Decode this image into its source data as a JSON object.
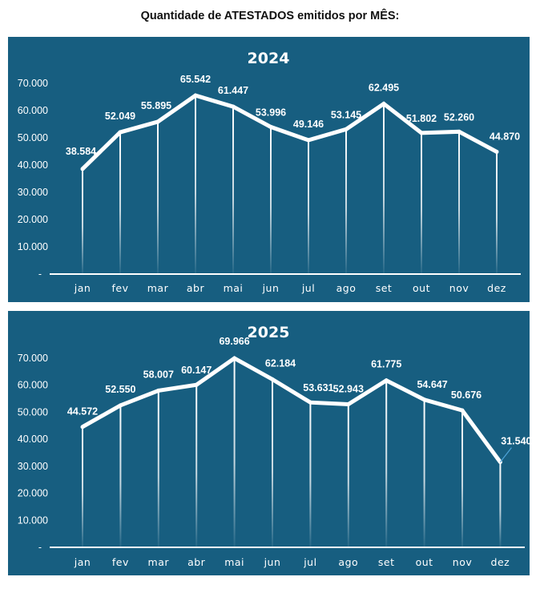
{
  "page": {
    "title": "Quantidade de ATESTADOS emitidos por MÊS:"
  },
  "colors": {
    "panel_background": "#175e80",
    "line": "#ffffff",
    "text": "#ffffff",
    "leader_line": "#4ea3d8"
  },
  "chart_data": [
    {
      "type": "line",
      "title": "2024",
      "xlabel": "",
      "ylabel": "",
      "categories": [
        "jan",
        "fev",
        "mar",
        "abr",
        "mai",
        "jun",
        "jul",
        "ago",
        "set",
        "out",
        "nov",
        "dez"
      ],
      "series": [
        {
          "name": "2024",
          "values": [
            38584,
            52049,
            55895,
            65542,
            61447,
            53996,
            49146,
            53145,
            62495,
            51802,
            52260,
            44870
          ]
        }
      ],
      "data_labels": [
        "38.584",
        "52.049",
        "55.895",
        "65.542",
        "61.447",
        "53.996",
        "49.146",
        "53.145",
        "62.495",
        "51.802",
        "52.260",
        "44.870"
      ],
      "y_ticks": [
        0,
        10000,
        20000,
        30000,
        40000,
        50000,
        60000,
        70000
      ],
      "y_tick_labels": [
        "-",
        "10.000",
        "20.000",
        "30.000",
        "40.000",
        "50.000",
        "60.000",
        "70.000"
      ],
      "ylim": [
        0,
        70000
      ],
      "grid": false,
      "drop_lines": true,
      "legend": "none"
    },
    {
      "type": "line",
      "title": "2025",
      "xlabel": "",
      "ylabel": "",
      "categories": [
        "jan",
        "fev",
        "mar",
        "abr",
        "mai",
        "jun",
        "jul",
        "ago",
        "set",
        "out",
        "nov",
        "dez"
      ],
      "series": [
        {
          "name": "2025",
          "values": [
            44572,
            52550,
            58007,
            60147,
            69966,
            62184,
            53631,
            52943,
            61775,
            54647,
            50676,
            31540
          ]
        }
      ],
      "data_labels": [
        "44.572",
        "52.550",
        "58.007",
        "60.147",
        "69.966",
        "62.184",
        "53.631",
        "52.943",
        "61.775",
        "54.647",
        "50.676",
        "31.540"
      ],
      "y_ticks": [
        0,
        10000,
        20000,
        30000,
        40000,
        50000,
        60000,
        70000
      ],
      "y_tick_labels": [
        "-",
        "10.000",
        "20.000",
        "30.000",
        "40.000",
        "50.000",
        "60.000",
        "70.000"
      ],
      "ylim": [
        0,
        70000
      ],
      "grid": false,
      "drop_lines": true,
      "legend": "none",
      "annotations": [
        "31.540 label connected to dez point by leader line"
      ]
    }
  ]
}
